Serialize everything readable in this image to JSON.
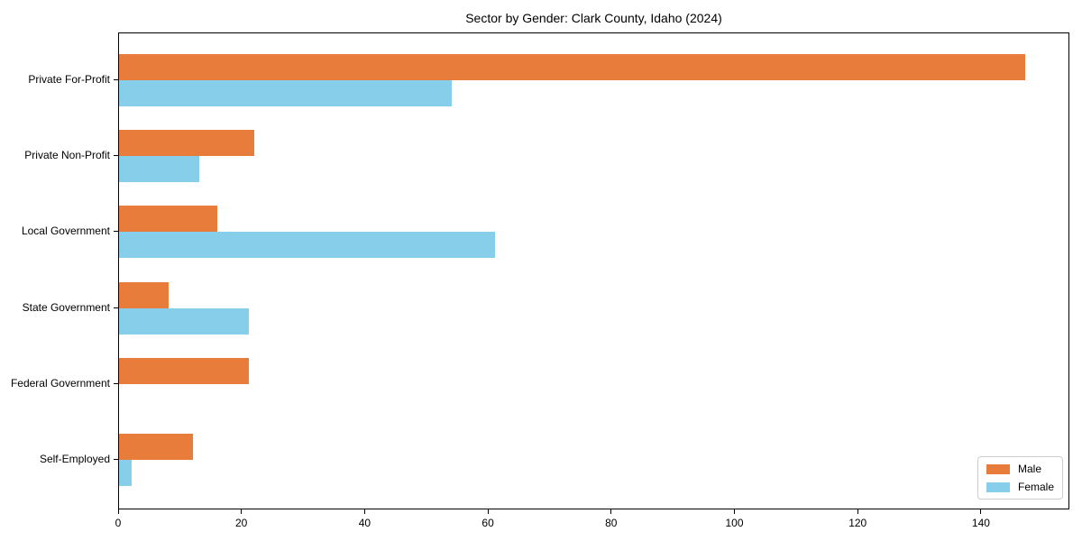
{
  "chart_data": {
    "type": "bar",
    "orientation": "horizontal",
    "title": "Sector by Gender: Clark County, Idaho (2024)",
    "categories": [
      "Private For-Profit",
      "Private Non-Profit",
      "Local Government",
      "State Government",
      "Federal Government",
      "Self-Employed"
    ],
    "series": [
      {
        "name": "Male",
        "color": "#e87d3b",
        "values": [
          147,
          22,
          16,
          8,
          21,
          12
        ]
      },
      {
        "name": "Female",
        "color": "#87ceeb",
        "values": [
          54,
          13,
          61,
          21,
          0,
          2
        ]
      }
    ],
    "xlabel": "",
    "ylabel": "",
    "xlim": [
      0,
      154.35
    ],
    "xticks": [
      0,
      20,
      40,
      60,
      80,
      100,
      120,
      140
    ],
    "grid": false,
    "legend": {
      "position": "lower right"
    }
  },
  "colors": {
    "male": "#e87d3b",
    "female": "#87ceeb",
    "axis": "#000000",
    "background": "#ffffff",
    "legend_border": "#cccccc"
  }
}
